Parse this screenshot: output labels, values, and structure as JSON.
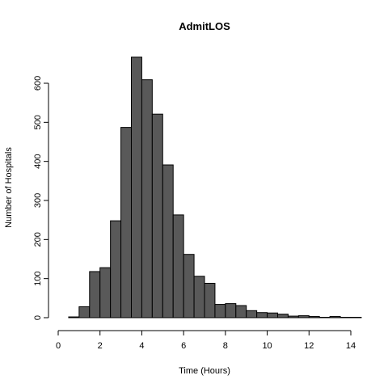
{
  "chart_data": {
    "type": "bar",
    "title": "AdmitLOS",
    "xlabel": "Time (Hours)",
    "ylabel": "Number of Hospitals",
    "xlim": [
      0,
      14
    ],
    "ylim": [
      0,
      600
    ],
    "x_ticks": [
      0,
      2,
      4,
      6,
      8,
      10,
      12,
      14
    ],
    "y_ticks": [
      0,
      100,
      200,
      300,
      400,
      500,
      600
    ],
    "bin_width": 0.5,
    "bin_start": 0.5,
    "values": [
      2,
      28,
      118,
      128,
      248,
      487,
      667,
      609,
      521,
      391,
      263,
      162,
      106,
      88,
      34,
      36,
      31,
      18,
      13,
      12,
      9,
      4,
      5,
      3,
      1,
      3,
      1,
      1
    ],
    "grid": false,
    "colors": {
      "bar_fill": "#595959",
      "bar_stroke": "#000000"
    }
  }
}
